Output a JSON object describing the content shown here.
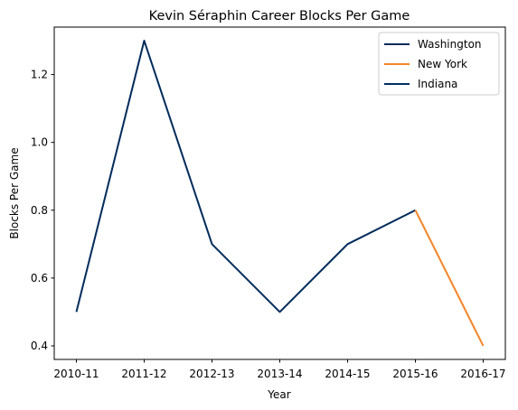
{
  "chart_data": {
    "type": "line",
    "title": "Kevin Séraphin Career Blocks Per Game",
    "xlabel": "Year",
    "ylabel": "Blocks Per Game",
    "categories": [
      "2010-11",
      "2011-12",
      "2012-13",
      "2013-14",
      "2014-15",
      "2015-16",
      "2016-17"
    ],
    "series": [
      {
        "name": "Washington",
        "color": "#002b5c",
        "x": [
          "2010-11",
          "2011-12",
          "2012-13",
          "2013-14",
          "2014-15",
          "2015-16"
        ],
        "values": [
          0.5,
          1.3,
          0.7,
          0.5,
          0.7,
          0.8
        ]
      },
      {
        "name": "New York",
        "color": "#f58426",
        "x": [
          "2015-16",
          "2016-17"
        ],
        "values": [
          0.8,
          0.4
        ]
      },
      {
        "name": "Indiana",
        "color": "#002d62",
        "x": [],
        "values": []
      }
    ],
    "yticks": [
      0.4,
      0.6,
      0.8,
      1.0,
      1.2
    ],
    "ytick_labels": [
      "0.4",
      "0.6",
      "0.8",
      "1.0",
      "1.2"
    ],
    "ylim": [
      0.36,
      1.34
    ],
    "grid": false,
    "legend": "top-right"
  }
}
